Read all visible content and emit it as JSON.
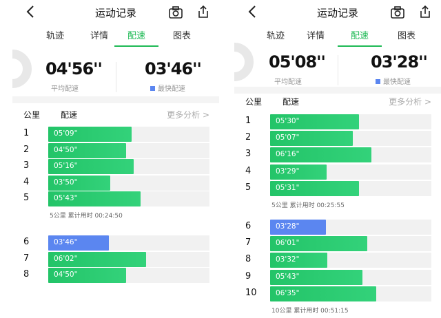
{
  "screens": [
    {
      "title": "运动记录",
      "tabs": [
        "轨迹",
        "详情",
        "配速",
        "图表"
      ],
      "active_tab": 2,
      "avg_pace": "04'56''",
      "avg_pace_label": "平均配速",
      "fast_pace": "03'46''",
      "fast_pace_label": "最快配速",
      "col_km": "公里",
      "col_pace": "配速",
      "more": "更多分析 >",
      "pace_max": "06'35\"",
      "groups": [
        {
          "rows": [
            {
              "km": "1",
              "pace": "05'09\""
            },
            {
              "km": "2",
              "pace": "04'50\""
            },
            {
              "km": "3",
              "pace": "05'16\""
            },
            {
              "km": "4",
              "pace": "03'50\""
            },
            {
              "km": "5",
              "pace": "05'43\""
            }
          ],
          "cum": "5公里 累计用时 00:24:50"
        },
        {
          "rows": [
            {
              "km": "6",
              "pace": "03'46\"",
              "fastest": true
            },
            {
              "km": "7",
              "pace": "06'02\""
            },
            {
              "km": "8",
              "pace": "04'50\""
            }
          ]
        }
      ]
    },
    {
      "title": "运动记录",
      "tabs": [
        "轨迹",
        "详情",
        "配速",
        "图表"
      ],
      "active_tab": 2,
      "avg_pace": "05'08''",
      "avg_pace_label": "平均配速",
      "fast_pace": "03'28''",
      "fast_pace_label": "最快配速",
      "col_km": "公里",
      "col_pace": "配速",
      "more": "更多分析 >",
      "pace_max": "06'35\"",
      "groups": [
        {
          "rows": [
            {
              "km": "1",
              "pace": "05'30\""
            },
            {
              "km": "2",
              "pace": "05'07\""
            },
            {
              "km": "3",
              "pace": "06'16\""
            },
            {
              "km": "4",
              "pace": "03'29\""
            },
            {
              "km": "5",
              "pace": "05'31\""
            }
          ],
          "cum": "5公里 累计用时 00:25:55"
        },
        {
          "rows": [
            {
              "km": "6",
              "pace": "03'28\"",
              "fastest": true
            },
            {
              "km": "7",
              "pace": "06'01\""
            },
            {
              "km": "8",
              "pace": "03'32\""
            },
            {
              "km": "9",
              "pace": "05'43\""
            },
            {
              "km": "10",
              "pace": "06'35\""
            }
          ],
          "cum": "10公里 累计用时 00:51:15"
        }
      ]
    }
  ]
}
